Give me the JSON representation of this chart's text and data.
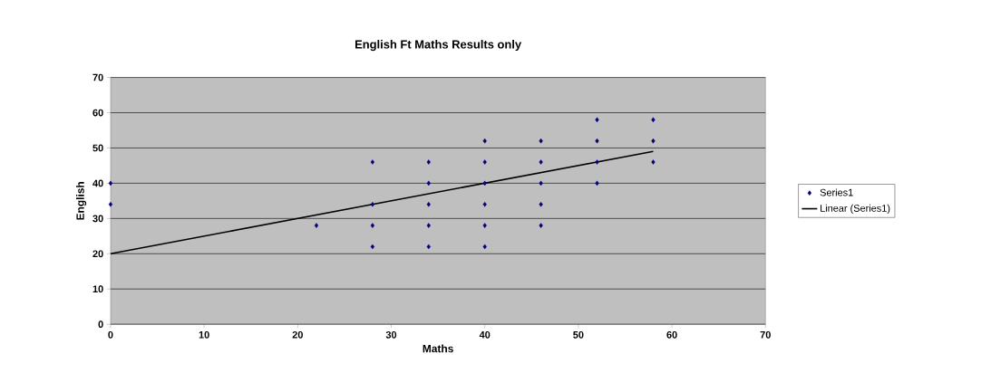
{
  "chart_data": {
    "type": "scatter",
    "title": "English Ft Maths Results only",
    "xlabel": "Maths",
    "ylabel": "English",
    "xlim": [
      0,
      70
    ],
    "ylim": [
      0,
      70
    ],
    "xticks": [
      0,
      10,
      20,
      30,
      40,
      50,
      60,
      70
    ],
    "yticks": [
      0,
      10,
      20,
      30,
      40,
      50,
      60,
      70
    ],
    "grid": "y",
    "legend": "right",
    "series": [
      {
        "name": "Series1",
        "color": "#000080",
        "marker": "diamond",
        "x": [
          0,
          0,
          22,
          28,
          28,
          28,
          28,
          34,
          34,
          34,
          34,
          34,
          40,
          40,
          40,
          40,
          40,
          40,
          46,
          46,
          46,
          46,
          46,
          52,
          52,
          52,
          52,
          58,
          58,
          58
        ],
        "values": [
          40,
          34,
          28,
          46,
          34,
          28,
          22,
          46,
          40,
          34,
          28,
          22,
          52,
          46,
          40,
          34,
          28,
          22,
          52,
          46,
          40,
          34,
          28,
          58,
          52,
          46,
          40,
          58,
          52,
          46
        ]
      },
      {
        "name": "Linear (Series1)",
        "type": "line",
        "color": "#000000",
        "marker": "none",
        "line_style": "solid",
        "x": [
          0,
          58
        ],
        "values": [
          20,
          49
        ]
      }
    ]
  }
}
